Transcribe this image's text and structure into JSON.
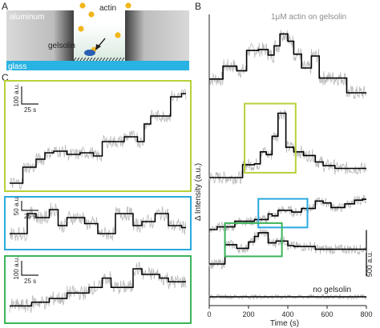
{
  "panels": {
    "A": {
      "label": "A",
      "labels": {
        "aluminum": "aluminum",
        "glass": "glass",
        "gelsolin": "gelsolin",
        "actin": "actin"
      }
    },
    "B": {
      "label": "B"
    },
    "C": {
      "label": "C"
    }
  },
  "colors": {
    "raw": "#b8b8b8",
    "fit": "#000000",
    "yellow_green": "#b6d23a",
    "blue": "#2aa9df",
    "green": "#3cb45a",
    "glass": "#2ab3e2",
    "aluminum_dark": "#4a4a4a",
    "bead": "#f2b61b"
  },
  "chart_data": [
    {
      "type": "line",
      "panel": "B",
      "title": "1μM actin on gelsolin",
      "xlabel": "Time (s)",
      "ylabel": "Δ Intensity (a.u.)",
      "xlim": [
        0,
        800
      ],
      "x_ticks": [
        "0",
        "200",
        "400",
        "600",
        "800"
      ],
      "scale_bar": "500 a.u.",
      "control_label": "no gelsolin",
      "series": [
        {
          "raw_noise": 80,
          "steps": [
            [
              0,
              150
            ],
            [
              70,
              290
            ],
            [
              140,
              240
            ],
            [
              190,
              460
            ],
            [
              250,
              470
            ],
            [
              300,
              410
            ],
            [
              330,
              510
            ],
            [
              360,
              640
            ],
            [
              400,
              560
            ],
            [
              430,
              420
            ],
            [
              470,
              270
            ],
            [
              520,
              400
            ],
            [
              560,
              160
            ],
            [
              700,
              0
            ],
            [
              800,
              0
            ]
          ]
        },
        {
          "raw_noise": 70,
          "steps": [
            [
              0,
              0
            ],
            [
              170,
              140
            ],
            [
              230,
              150
            ],
            [
              260,
              280
            ],
            [
              290,
              250
            ],
            [
              320,
              450
            ],
            [
              350,
              700
            ],
            [
              390,
              330
            ],
            [
              430,
              280
            ],
            [
              480,
              240
            ],
            [
              540,
              170
            ],
            [
              580,
              130
            ],
            [
              640,
              100
            ],
            [
              720,
              100
            ],
            [
              800,
              100
            ]
          ]
        },
        {
          "raw_noise": 50,
          "steps": [
            [
              0,
              0
            ],
            [
              40,
              30
            ],
            [
              130,
              90
            ],
            [
              230,
              110
            ],
            [
              300,
              170
            ],
            [
              320,
              150
            ],
            [
              350,
              210
            ],
            [
              420,
              190
            ],
            [
              470,
              230
            ],
            [
              540,
              310
            ],
            [
              580,
              290
            ],
            [
              620,
              240
            ],
            [
              690,
              280
            ],
            [
              740,
              320
            ],
            [
              780,
              330
            ],
            [
              800,
              330
            ]
          ]
        },
        {
          "raw_noise": 55,
          "steps": [
            [
              0,
              0
            ],
            [
              80,
              210
            ],
            [
              140,
              170
            ],
            [
              200,
              240
            ],
            [
              230,
              300
            ],
            [
              250,
              340
            ],
            [
              300,
              230
            ],
            [
              340,
              250
            ],
            [
              400,
              200
            ],
            [
              430,
              190
            ],
            [
              540,
              160
            ],
            [
              600,
              160
            ],
            [
              700,
              160
            ],
            [
              800,
              160
            ]
          ]
        },
        {
          "raw_noise": 25,
          "steps": [
            [
              0,
              0
            ],
            [
              800,
              0
            ]
          ]
        }
      ],
      "zoom_boxes": [
        {
          "series": 1,
          "x": [
            180,
            440
          ],
          "color": "yellow-green"
        },
        {
          "series": 2,
          "x": [
            250,
            500
          ],
          "color": "blue"
        },
        {
          "series": 3,
          "x": [
            80,
            370
          ],
          "color": "green"
        }
      ]
    },
    {
      "type": "line",
      "panel": "C",
      "subplots": [
        {
          "color": "yellow-green",
          "scale_bar_y": "100 a.u.",
          "scale_bar_x": "25 s",
          "raw_noise": 40,
          "steps": [
            [
              0,
              0
            ],
            [
              30,
              100
            ],
            [
              60,
              150
            ],
            [
              80,
              190
            ],
            [
              100,
              200
            ],
            [
              130,
              180
            ],
            [
              160,
              190
            ],
            [
              190,
              170
            ],
            [
              210,
              260
            ],
            [
              240,
              260
            ],
            [
              260,
              290
            ],
            [
              290,
              260
            ],
            [
              305,
              370
            ],
            [
              320,
              420
            ],
            [
              340,
              420
            ],
            [
              365,
              540
            ],
            [
              390,
              560
            ],
            [
              400,
              560
            ]
          ]
        },
        {
          "color": "blue",
          "scale_bar_y": "50 a.u.",
          "scale_bar_x": "25 s",
          "raw_noise": 18,
          "steps": [
            [
              0,
              20
            ],
            [
              40,
              70
            ],
            [
              60,
              60
            ],
            [
              90,
              80
            ],
            [
              110,
              40
            ],
            [
              130,
              60
            ],
            [
              170,
              45
            ],
            [
              200,
              20
            ],
            [
              240,
              70
            ],
            [
              280,
              40
            ],
            [
              300,
              50
            ],
            [
              330,
              70
            ],
            [
              360,
              40
            ],
            [
              390,
              35
            ],
            [
              400,
              35
            ]
          ]
        },
        {
          "color": "green",
          "scale_bar_y": "100 a.u.",
          "scale_bar_x": "25 s",
          "raw_noise": 40,
          "steps": [
            [
              0,
              50
            ],
            [
              50,
              70
            ],
            [
              90,
              90
            ],
            [
              130,
              120
            ],
            [
              180,
              150
            ],
            [
              210,
              200
            ],
            [
              230,
              150
            ],
            [
              260,
              150
            ],
            [
              280,
              250
            ],
            [
              300,
              220
            ],
            [
              340,
              200
            ],
            [
              360,
              180
            ],
            [
              400,
              180
            ]
          ]
        }
      ]
    }
  ]
}
